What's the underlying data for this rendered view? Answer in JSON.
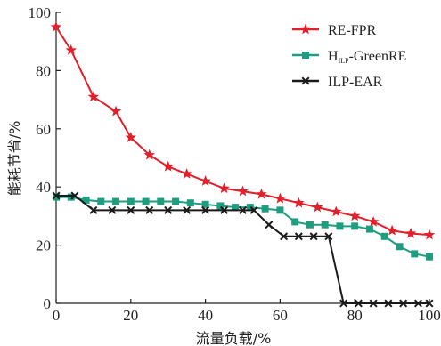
{
  "chart_data": {
    "type": "line",
    "xlabel": "流量负载/%",
    "ylabel": "能耗节省/%",
    "xlim": [
      0,
      100
    ],
    "ylim": [
      0,
      100
    ],
    "x_ticks": [
      "0",
      "20",
      "40",
      "60",
      "80",
      "100"
    ],
    "y_ticks": [
      "0",
      "20",
      "40",
      "60",
      "80",
      "100"
    ],
    "grid": false,
    "legend_position": "top-right",
    "series": [
      {
        "name": "RE-FPR",
        "name_main": "RE-FPR",
        "color": "#e0202a",
        "marker": "star",
        "x": [
          0,
          4,
          10,
          16,
          20,
          25,
          30,
          35,
          40,
          45,
          50,
          55,
          60,
          65,
          70,
          75,
          80,
          85,
          90,
          95,
          100
        ],
        "y": [
          95,
          87,
          71,
          66,
          57,
          51,
          47,
          44.5,
          42,
          39.5,
          38.5,
          37.5,
          36,
          34.5,
          33,
          31.5,
          30,
          28,
          25,
          24,
          23.5
        ]
      },
      {
        "name": "HILP-GreenRE",
        "name_prefix": "H",
        "name_sub": "ILP",
        "name_suffix": "-GreenRE",
        "color": "#1f9d7f",
        "marker": "square",
        "x": [
          0,
          4,
          8,
          12,
          16,
          20,
          24,
          28,
          32,
          36,
          40,
          44,
          48,
          52,
          56,
          60,
          64,
          68,
          72,
          76,
          80,
          84,
          88,
          92,
          96,
          100
        ],
        "y": [
          36.5,
          36.5,
          35.5,
          35,
          35,
          35,
          35,
          35,
          35,
          34.5,
          34,
          33.5,
          33,
          33,
          32.5,
          32,
          28,
          27,
          27,
          26.5,
          26.5,
          25.5,
          23,
          19.5,
          17,
          16
        ]
      },
      {
        "name": "ILP-EAR",
        "name_main": "ILP-EAR",
        "color": "#1a1a1a",
        "marker": "x",
        "x": [
          0,
          5,
          10,
          15,
          20,
          25,
          30,
          35,
          40,
          45,
          50,
          53,
          57,
          61,
          65,
          69,
          73,
          77,
          81,
          85,
          89,
          93,
          97,
          100
        ],
        "y": [
          37,
          37,
          32,
          32,
          32,
          32,
          32,
          32,
          32,
          32,
          32,
          32,
          27,
          23,
          23,
          23,
          23,
          0,
          0,
          0,
          0,
          0,
          0,
          0
        ]
      }
    ]
  }
}
